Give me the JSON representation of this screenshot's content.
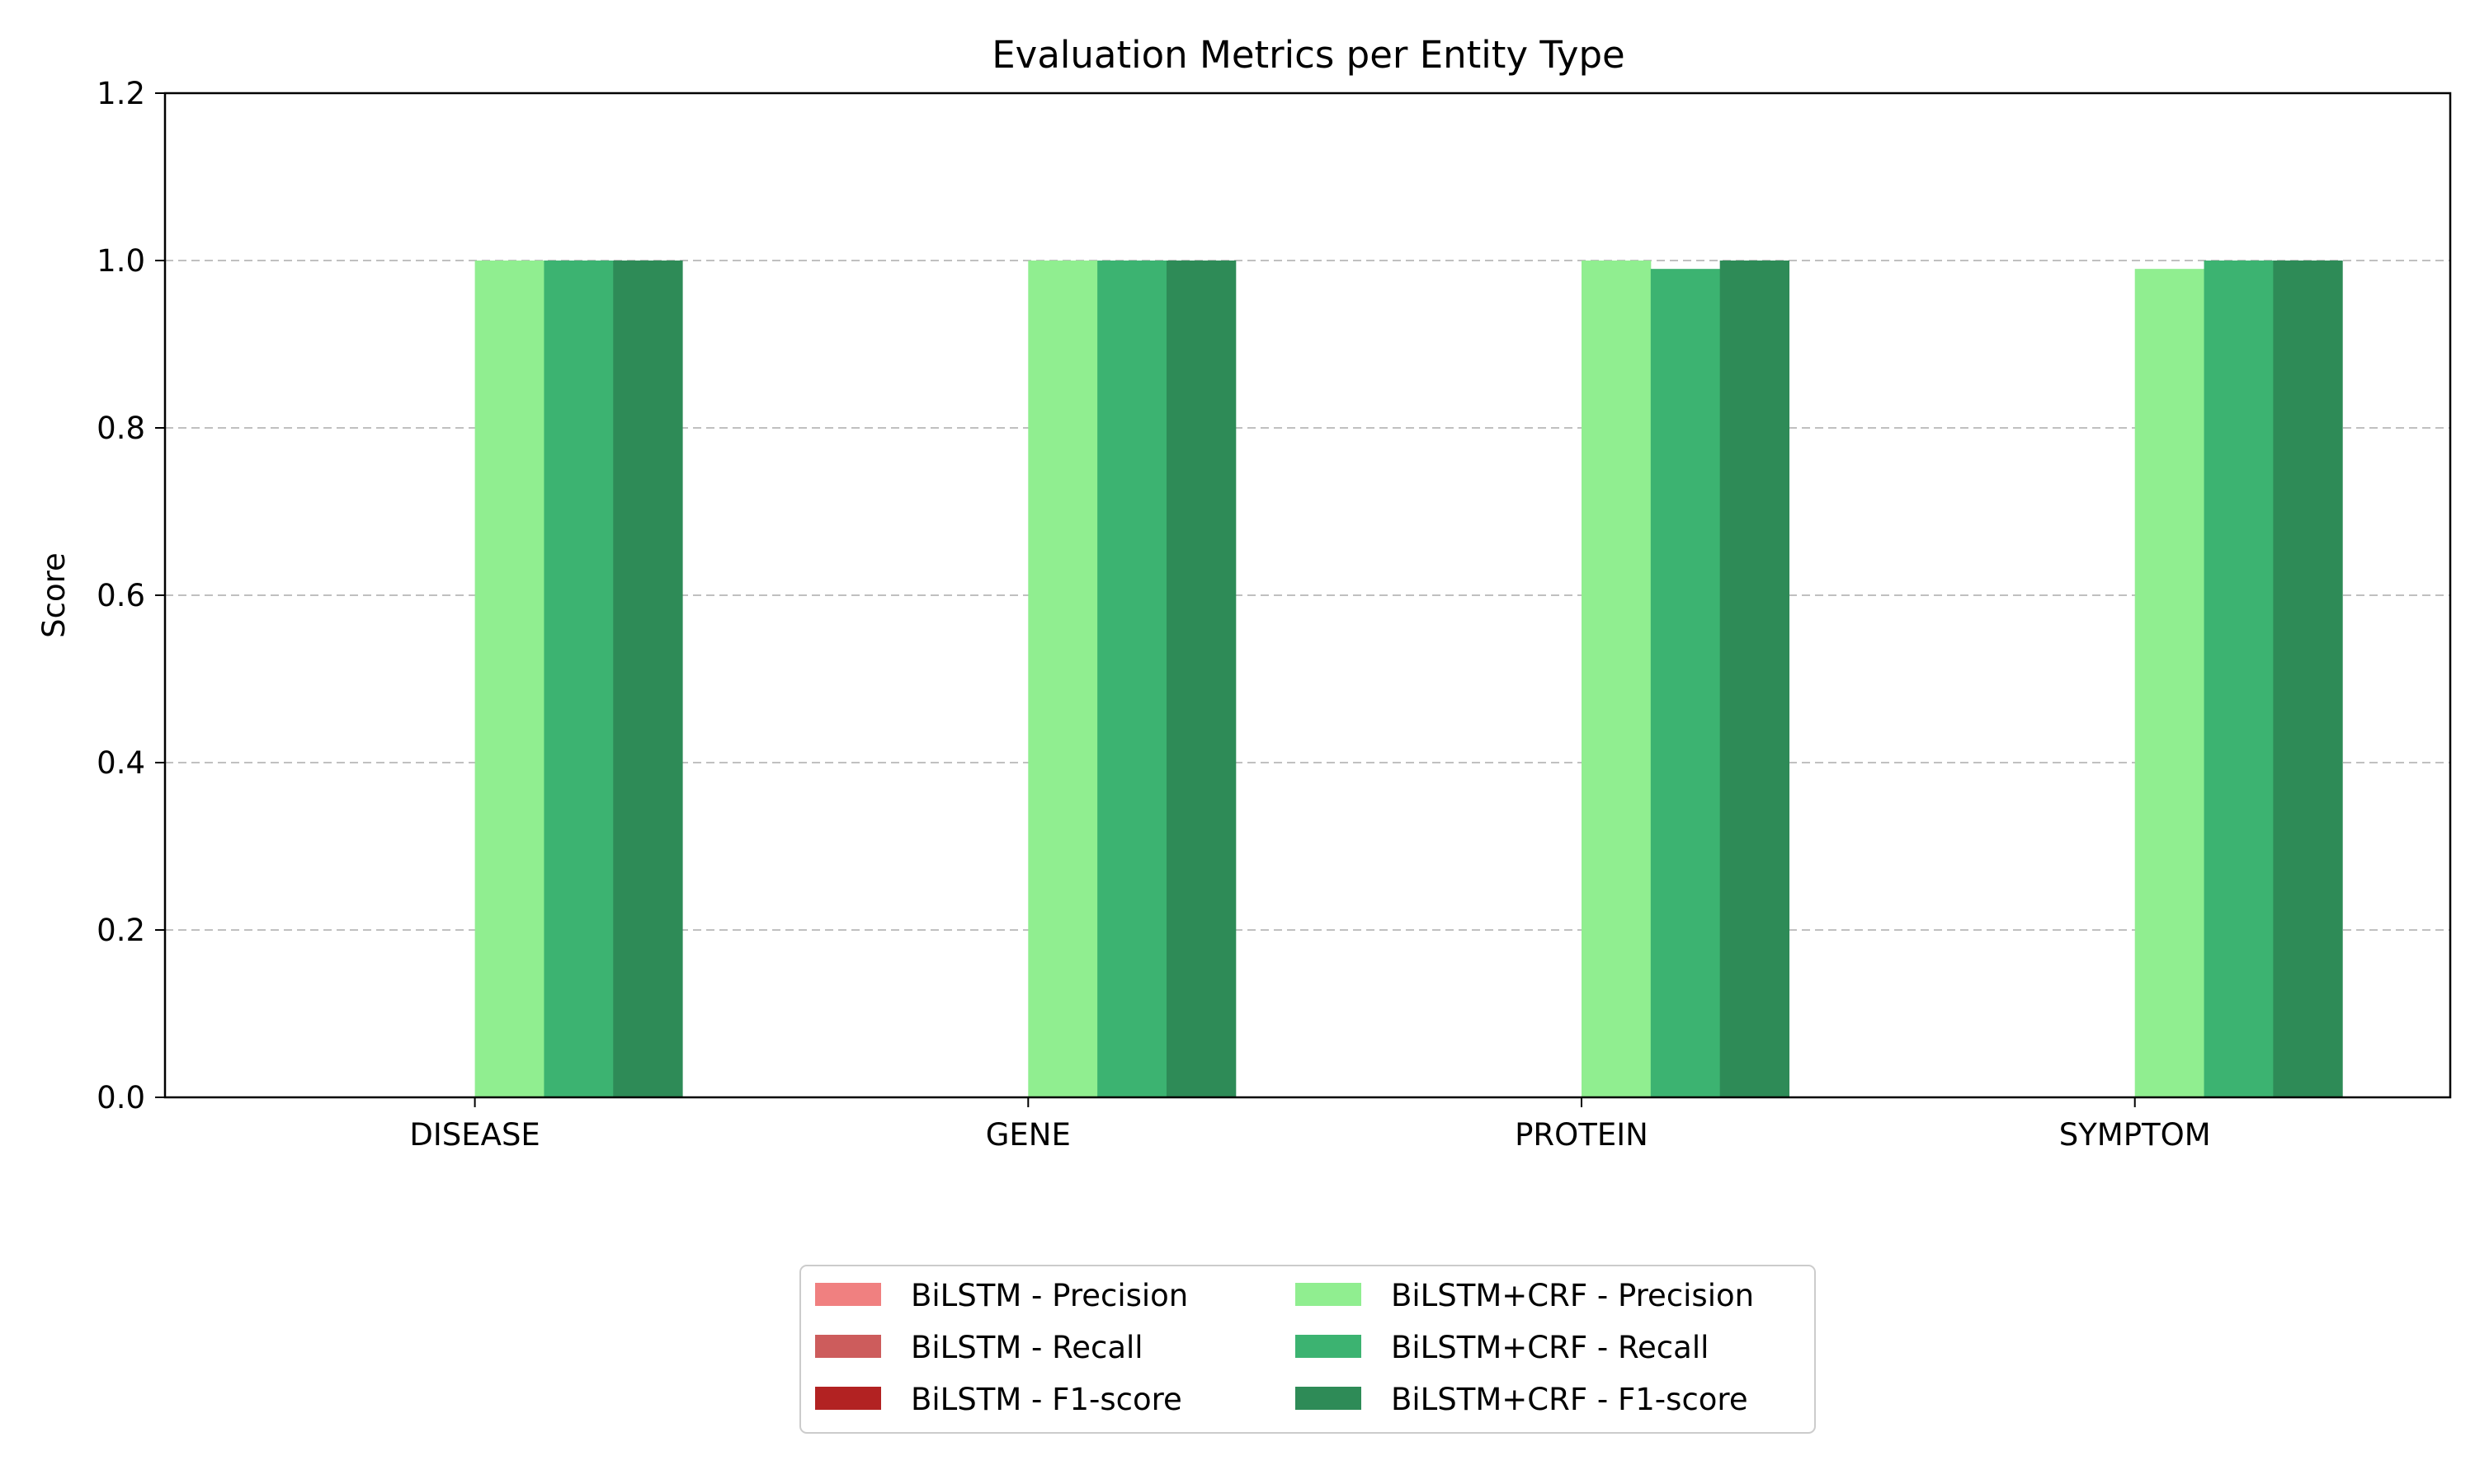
{
  "chart_data": {
    "type": "bar",
    "title": "Evaluation Metrics per Entity Type",
    "xlabel": "",
    "ylabel": "Score",
    "categories": [
      "DISEASE",
      "GENE",
      "PROTEIN",
      "SYMPTOM"
    ],
    "ylim": [
      0,
      1.2
    ],
    "yticks": [
      "0.0",
      "0.2",
      "0.4",
      "0.6",
      "0.8",
      "1.0",
      "1.2"
    ],
    "grid": "y-dashed",
    "legend_position": "bottom-center",
    "series": [
      {
        "name": "BiLSTM - Precision",
        "color": "#f08080",
        "values": [
          0,
          0,
          0,
          0
        ]
      },
      {
        "name": "BiLSTM - Recall",
        "color": "#cd5c5c",
        "values": [
          0,
          0,
          0,
          0
        ]
      },
      {
        "name": "BiLSTM - F1-score",
        "color": "#b22222",
        "values": [
          0,
          0,
          0,
          0
        ]
      },
      {
        "name": "BiLSTM+CRF - Precision",
        "color": "#90ee90",
        "values": [
          1.0,
          1.0,
          1.0,
          0.99
        ]
      },
      {
        "name": "BiLSTM+CRF - Recall",
        "color": "#3cb371",
        "values": [
          1.0,
          1.0,
          0.99,
          1.0
        ]
      },
      {
        "name": "BiLSTM+CRF - F1-score",
        "color": "#2e8b57",
        "values": [
          1.0,
          1.0,
          1.0,
          1.0
        ]
      }
    ]
  }
}
